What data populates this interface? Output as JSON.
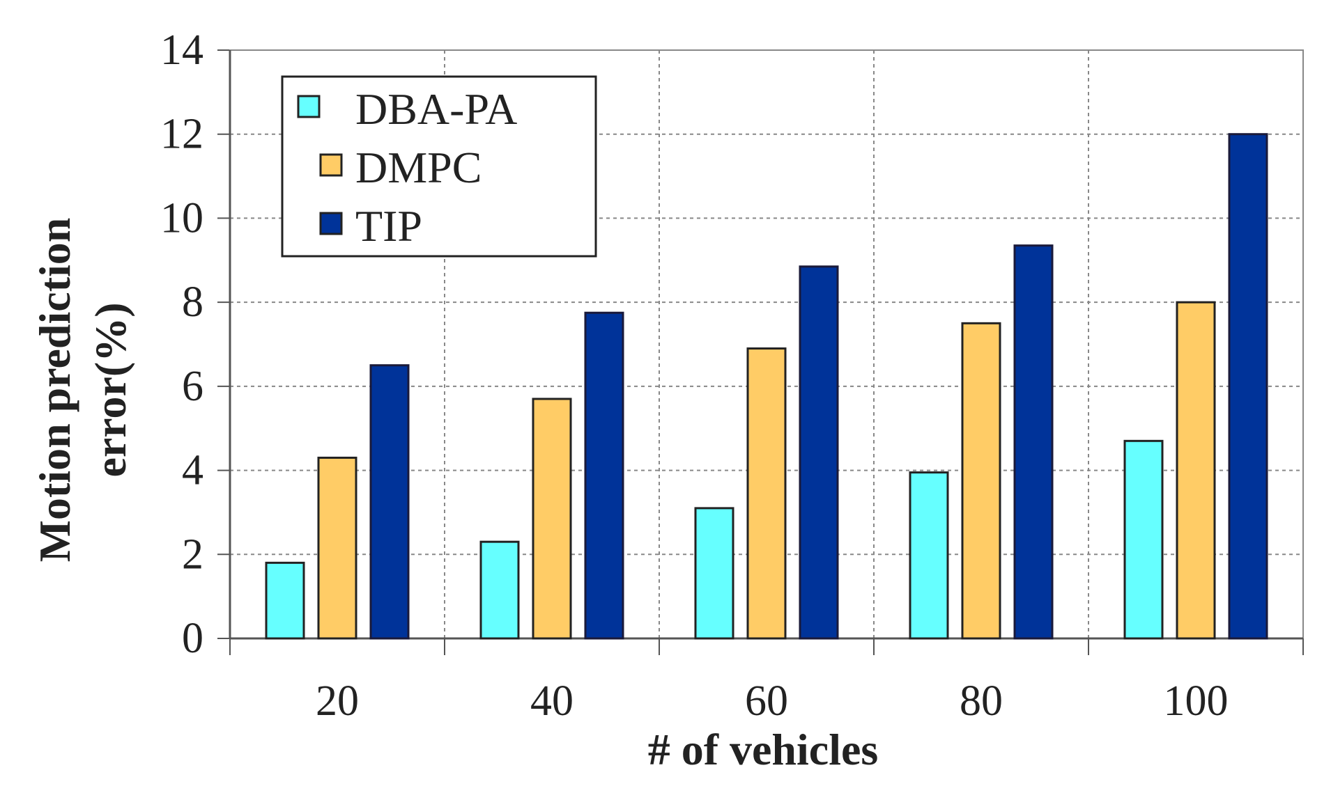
{
  "chart_data": {
    "type": "bar",
    "categories": [
      "20",
      "40",
      "60",
      "80",
      "100"
    ],
    "series": [
      {
        "name": "DBA-PA",
        "values": [
          1.8,
          2.3,
          3.1,
          3.95,
          4.7
        ],
        "color": "#66FFFF"
      },
      {
        "name": "DMPC",
        "values": [
          4.3,
          5.7,
          6.9,
          7.5,
          8.0
        ],
        "color": "#FFCC66"
      },
      {
        "name": "TIP",
        "values": [
          6.5,
          7.75,
          8.85,
          9.35,
          12.0
        ],
        "color": "#003399"
      }
    ],
    "title": "",
    "xlabel": "# of vehicles",
    "ylabel_line1": "Motion prediction",
    "ylabel_line2": "error(%)",
    "ylim": [
      0,
      14
    ],
    "yticks": [
      "0",
      "2",
      "4",
      "6",
      "8",
      "10",
      "12",
      "14"
    ],
    "grid": true,
    "legend_position": "top-left"
  }
}
